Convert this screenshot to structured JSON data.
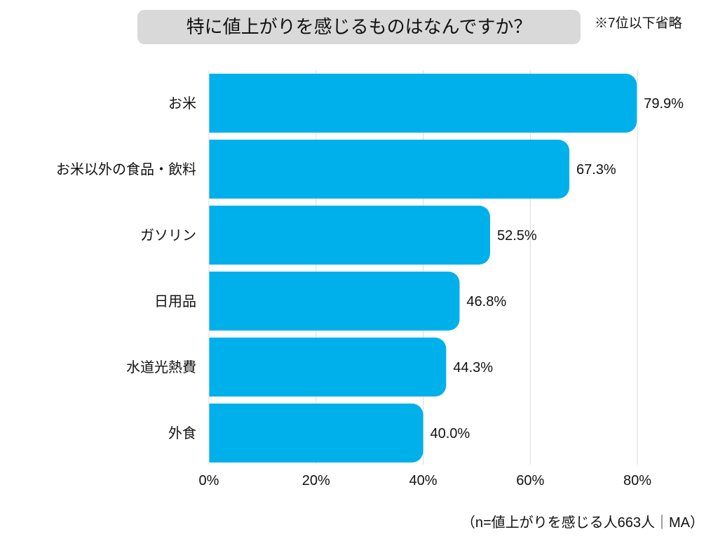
{
  "title": "特に値上がりを感じるものはなんですか？",
  "note": "※7位以下省略",
  "footer": "（n=値上がりを感じる人663人｜MA）",
  "chart_data": {
    "type": "bar",
    "orientation": "horizontal",
    "categories": [
      "お米",
      "お米以外の食品・飲料",
      "ガソリン",
      "日用品",
      "水道光熱費",
      "外食"
    ],
    "values": [
      79.9,
      67.3,
      52.5,
      46.8,
      44.3,
      40.0
    ],
    "data_labels": [
      "79.9%",
      "67.3%",
      "52.5%",
      "46.8%",
      "44.3%",
      "40.0%"
    ],
    "xlim": [
      0,
      80
    ],
    "x_ticks": [
      "0%",
      "20%",
      "40%",
      "60%",
      "80%"
    ],
    "grid": true,
    "bar_color": "#00b0ea"
  }
}
